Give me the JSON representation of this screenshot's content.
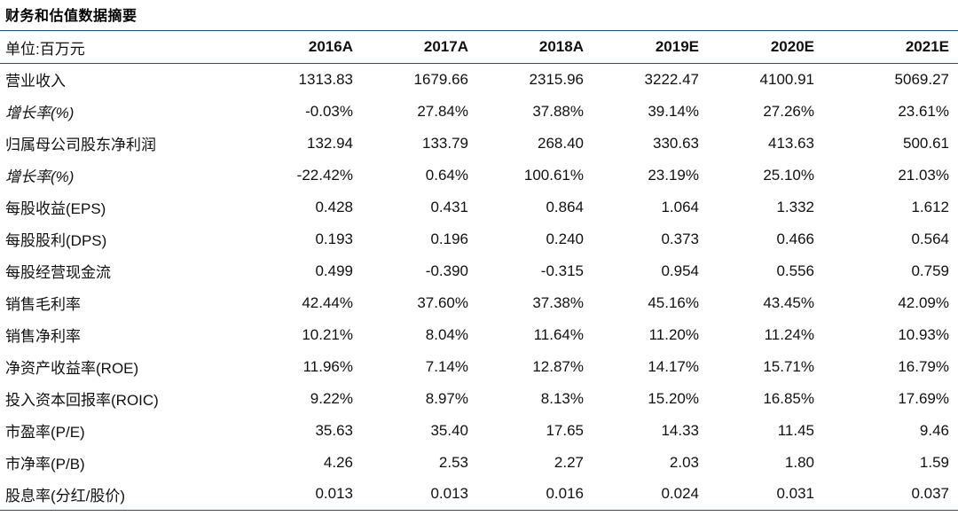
{
  "title": "财务和估值数据摘要",
  "header": {
    "label": "单位:百万元",
    "years": [
      "2016A",
      "2017A",
      "2018A",
      "2019E",
      "2020E",
      "2021E"
    ]
  },
  "rows": [
    {
      "label": "营业收入",
      "italic": false,
      "values": [
        "1313.83",
        "1679.66",
        "2315.96",
        "3222.47",
        "4100.91",
        "5069.27"
      ]
    },
    {
      "label": "增长率(%)",
      "italic": true,
      "values": [
        "-0.03%",
        "27.84%",
        "37.88%",
        "39.14%",
        "27.26%",
        "23.61%"
      ]
    },
    {
      "label": "归属母公司股东净利润",
      "italic": false,
      "values": [
        "132.94",
        "133.79",
        "268.40",
        "330.63",
        "413.63",
        "500.61"
      ]
    },
    {
      "label": "增长率(%)",
      "italic": true,
      "values": [
        "-22.42%",
        "0.64%",
        "100.61%",
        "23.19%",
        "25.10%",
        "21.03%"
      ]
    },
    {
      "label": "每股收益(EPS)",
      "italic": false,
      "values": [
        "0.428",
        "0.431",
        "0.864",
        "1.064",
        "1.332",
        "1.612"
      ]
    },
    {
      "label": "每股股利(DPS)",
      "italic": false,
      "values": [
        "0.193",
        "0.196",
        "0.240",
        "0.373",
        "0.466",
        "0.564"
      ]
    },
    {
      "label": "每股经营现金流",
      "italic": false,
      "values": [
        "0.499",
        "-0.390",
        "-0.315",
        "0.954",
        "0.556",
        "0.759"
      ]
    },
    {
      "label": "销售毛利率",
      "italic": false,
      "values": [
        "42.44%",
        "37.60%",
        "37.38%",
        "45.16%",
        "43.45%",
        "42.09%"
      ]
    },
    {
      "label": "销售净利率",
      "italic": false,
      "values": [
        "10.21%",
        "8.04%",
        "11.64%",
        "11.20%",
        "11.24%",
        "10.93%"
      ]
    },
    {
      "label": "净资产收益率(ROE)",
      "italic": false,
      "values": [
        "11.96%",
        "7.14%",
        "12.87%",
        "14.17%",
        "15.71%",
        "16.79%"
      ]
    },
    {
      "label": "投入资本回报率(ROIC)",
      "italic": false,
      "values": [
        "9.22%",
        "8.97%",
        "8.13%",
        "15.20%",
        "16.85%",
        "17.69%"
      ]
    },
    {
      "label": "市盈率(P/E)",
      "italic": false,
      "values": [
        "35.63",
        "35.40",
        "17.65",
        "14.33",
        "11.45",
        "9.46"
      ]
    },
    {
      "label": "市净率(P/B)",
      "italic": false,
      "values": [
        "4.26",
        "2.53",
        "2.27",
        "2.03",
        "1.80",
        "1.59"
      ]
    },
    {
      "label": "股息率(分红/股价)",
      "italic": false,
      "values": [
        "0.013",
        "0.013",
        "0.016",
        "0.024",
        "0.031",
        "0.037"
      ]
    }
  ]
}
